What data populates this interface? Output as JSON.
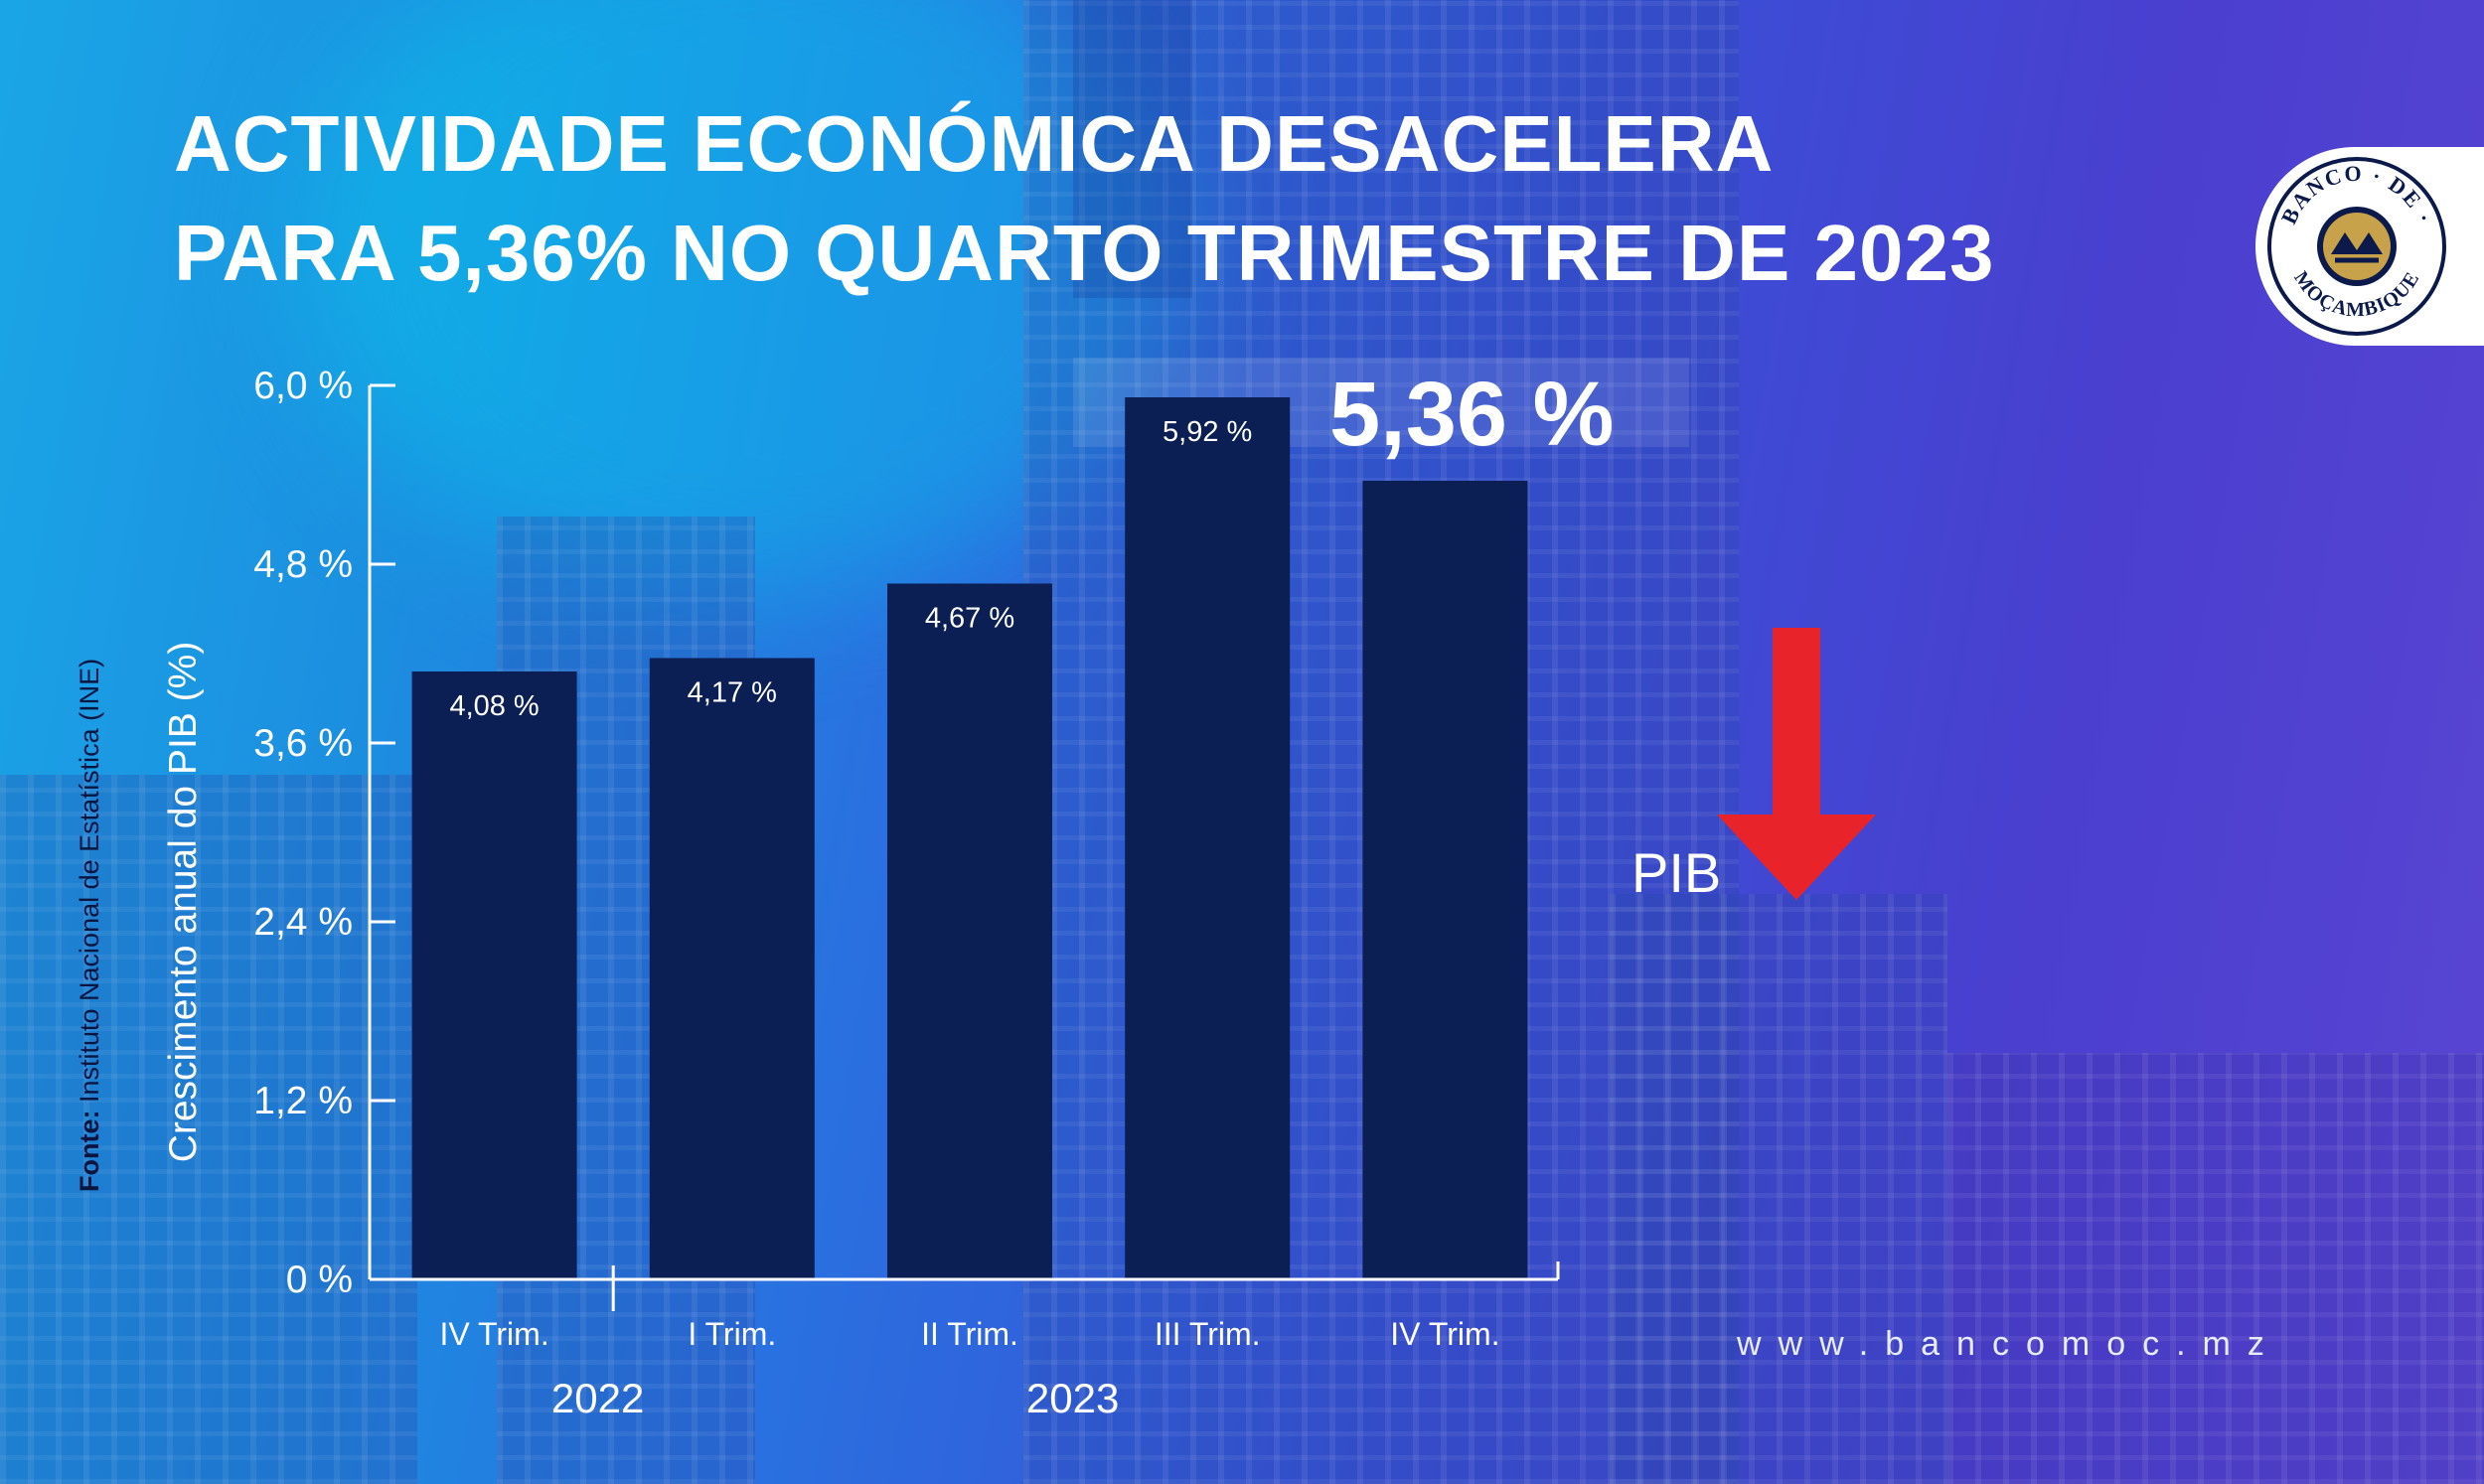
{
  "title": {
    "line1": "ACTIVIDADE ECONÓMICA DESACELERA",
    "line2": "PARA 5,36% NO QUARTO TRIMESTRE DE 2023"
  },
  "logo": {
    "text_top": "BANCO",
    "text_mid": "DE",
    "text_bottom": "MOÇAMBIQUE",
    "colors": {
      "ring": "#0b1a4a",
      "gold": "#c8a24a"
    }
  },
  "highlight": {
    "value_label": "5,36 %"
  },
  "indicator": {
    "label": "PIB",
    "direction": "down",
    "color": "#e8232a",
    "icon": "arrow-down-icon"
  },
  "source": {
    "prefix": "Fonte:",
    "text": " Instituto Nacional de Estatística (INE)"
  },
  "website": "www.bancomoc.mz",
  "chart_data": {
    "type": "bar",
    "ylabel": "Crescimento anual do PIB (%)",
    "ylim": [
      0,
      6.0
    ],
    "yticks": [
      0,
      1.2,
      2.4,
      3.6,
      4.8,
      6.0
    ],
    "ytick_labels": [
      "0 %",
      "1,2 %",
      "2,4 %",
      "3,6 %",
      "4,8 %",
      "6,0 %"
    ],
    "categories": [
      "IV Trim.",
      "I Trim.",
      "II Trim.",
      "III Trim.",
      "IV Trim."
    ],
    "values": [
      4.08,
      4.17,
      4.67,
      5.92,
      5.36
    ],
    "data_labels": [
      "4,08 %",
      "4,17 %",
      "4,67 %",
      "5,92 %",
      ""
    ],
    "year_groups": [
      {
        "label": "2022",
        "categories": [
          "IV Trim."
        ]
      },
      {
        "label": "2023",
        "categories": [
          "I Trim.",
          "II Trim.",
          "III Trim.",
          "IV Trim."
        ]
      }
    ],
    "bar_color": "#0b1f55",
    "axis_color": "#ffffff",
    "grid": false
  }
}
